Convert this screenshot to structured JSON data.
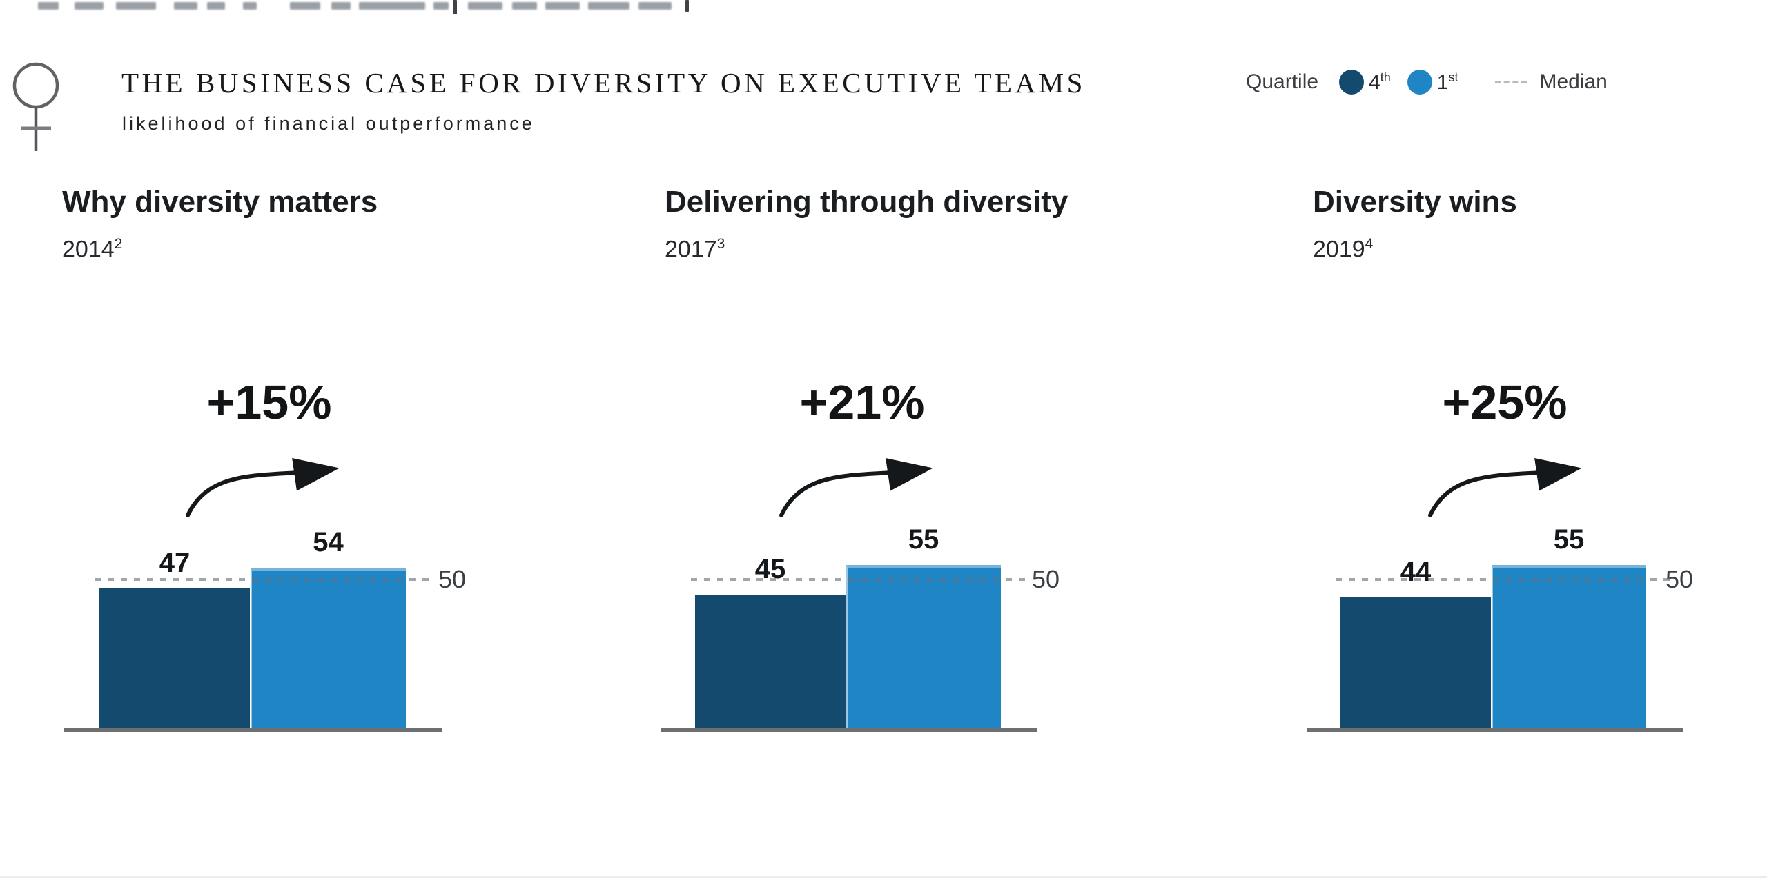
{
  "header": {
    "title": "THE BUSINESS CASE FOR DIVERSITY ON EXECUTIVE TEAMS",
    "subtitle": "likelihood of financial outperformance",
    "icon": "female-gender-symbol"
  },
  "legend": {
    "label": "Quartile",
    "items": [
      {
        "value": "4",
        "suffix": "th",
        "name": "4th quartile",
        "color": "#154a6f"
      },
      {
        "value": "1",
        "suffix": "st",
        "name": "1st quartile",
        "color": "#2085c5"
      }
    ],
    "median_label": "Median"
  },
  "panels": [
    {
      "title": "Why diversity matters",
      "year": "2014",
      "footnote": "2"
    },
    {
      "title": "Delivering through diversity",
      "year": "2017",
      "footnote": "3"
    },
    {
      "title": "Diversity wins",
      "year": "2019",
      "footnote": "4"
    }
  ],
  "chart_data": {
    "type": "bar",
    "title": "THE BUSINESS CASE FOR DIVERSITY ON EXECUTIVE TEAMS",
    "subtitle": "likelihood of financial outperformance",
    "categories": [
      "Why diversity matters (2014)",
      "Delivering through diversity (2017)",
      "Diversity wins (2019)"
    ],
    "series": [
      {
        "name": "4th quartile",
        "color": "#154a6f",
        "values": [
          47,
          45,
          44
        ]
      },
      {
        "name": "1st quartile",
        "color": "#2085c5",
        "values": [
          54,
          55,
          55
        ]
      }
    ],
    "deltas": [
      "+15%",
      "+21%",
      "+25%"
    ],
    "median": 50,
    "median_line_style": "dashed",
    "ylim": [
      0,
      60
    ],
    "grid": false,
    "legend_position": "top-right"
  }
}
